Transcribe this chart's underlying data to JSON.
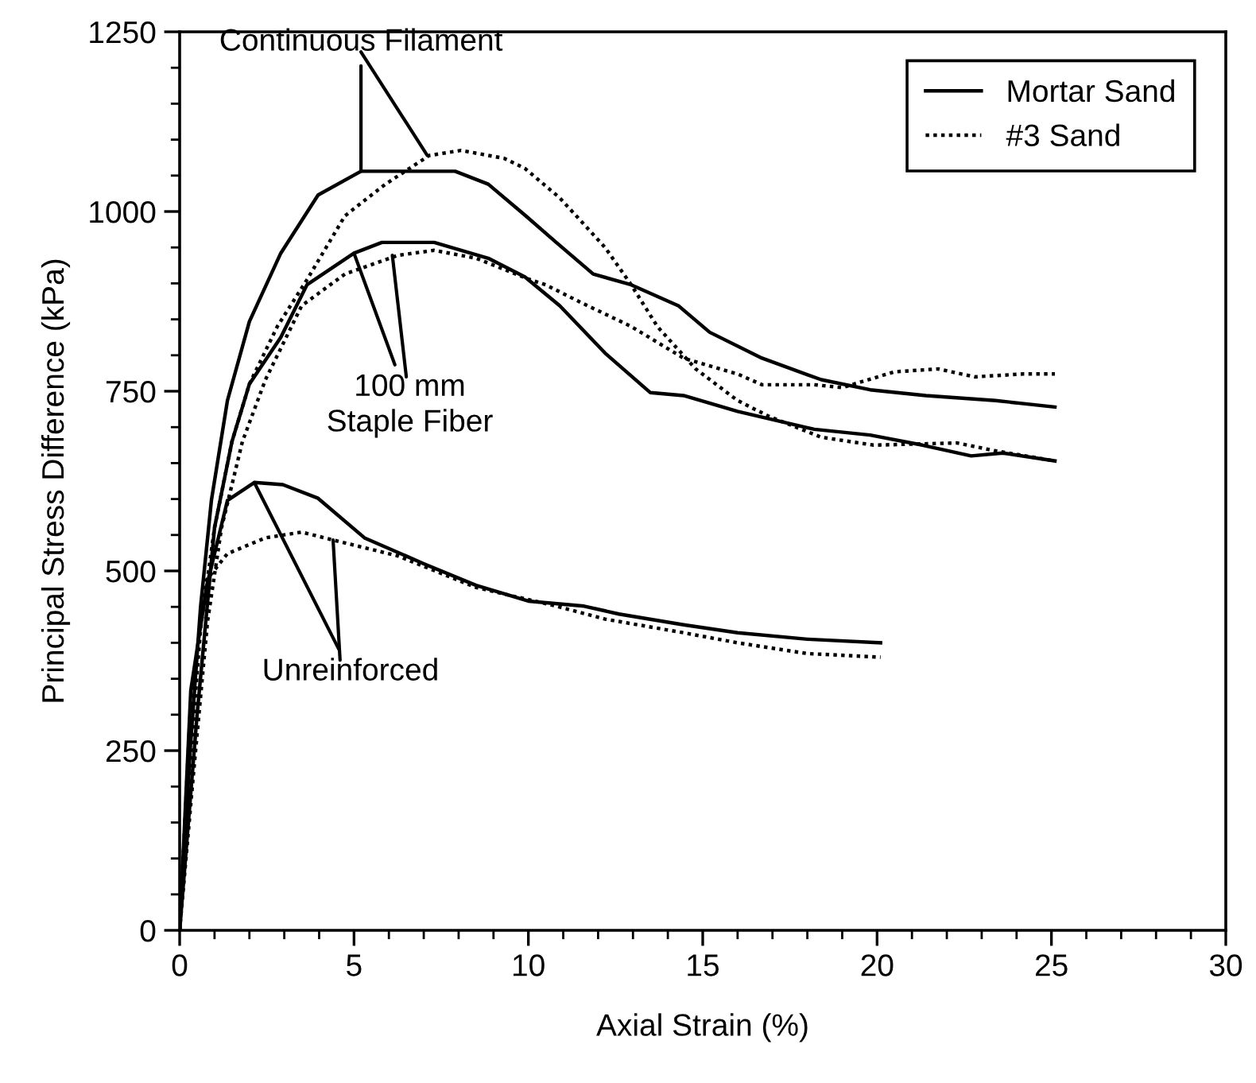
{
  "chart_data": {
    "type": "line",
    "xlabel": "Axial Strain (%)",
    "ylabel": "Principal Stress Difference (kPa)",
    "xlim": [
      0,
      30
    ],
    "xticks": [
      0,
      5,
      10,
      15,
      20,
      25,
      30
    ],
    "ylim": [
      0,
      1250
    ],
    "yticks": [
      0,
      250,
      500,
      750,
      1000,
      1250
    ],
    "grid": false,
    "legend": "top right",
    "marker": "none",
    "series": [
      {
        "name": "Mortar Sand",
        "color": "#000000",
        "line_style": "solid",
        "x": [
          0,
          0.3,
          0.6,
          0.91,
          1.37,
          2.0,
          2.9,
          3.97,
          5.2,
          7.9,
          8.85,
          9.9,
          10.8,
          11.86,
          12.95,
          14.3,
          15.2,
          16.7,
          18.4,
          19.8,
          21.4,
          23.4,
          25.1
        ],
        "values": [
          0,
          250,
          450,
          598,
          737,
          847,
          942,
          1023,
          1056,
          1056,
          1038,
          995,
          957,
          913,
          898,
          869,
          832,
          796,
          766,
          752,
          744,
          737,
          728
        ]
      },
      {
        "name": "#3 Sand",
        "color": "#000000",
        "line_style": "dotted",
        "x": [
          0,
          0.3,
          0.6,
          1.0,
          1.5,
          2.0,
          2.8,
          3.65,
          4.74,
          5.9,
          7.16,
          8.07,
          9.3,
          9.9,
          10.9,
          12.2,
          12.95,
          13.7,
          14.8,
          16.0,
          16.9,
          18.4,
          19.9,
          22.3,
          23.4,
          25.1
        ],
        "values": [
          0,
          230,
          420,
          560,
          680,
          760,
          840,
          905,
          994,
          1038,
          1078,
          1085,
          1074,
          1060,
          1019,
          950,
          898,
          840,
          781,
          737,
          715,
          686,
          675,
          678,
          667,
          653
        ]
      },
      {
        "color": "#000000",
        "line_style": "solid",
        "x": [
          0,
          0.5,
          1.0,
          1.5,
          2.0,
          2.9,
          3.65,
          5.0,
          5.8,
          7.3,
          8.85,
          9.9,
          10.9,
          12.2,
          13.5,
          14.45,
          16.0,
          18.2,
          19.8,
          21.3,
          22.7,
          23.6,
          25.1
        ],
        "values": [
          0,
          300,
          560,
          680,
          760,
          825,
          898,
          942,
          957,
          957,
          935,
          909,
          869,
          803,
          748,
          744,
          722,
          697,
          689,
          675,
          660,
          664,
          653
        ]
      },
      {
        "color": "#000000",
        "line_style": "dotted",
        "x": [
          0,
          0.4,
          0.8,
          1.2,
          1.8,
          2.46,
          3.5,
          4.74,
          6.25,
          7.3,
          8.5,
          10.0,
          10.5,
          11.4,
          12.95,
          14.45,
          16.0,
          16.7,
          18.2,
          19.0,
          20.5,
          21.75,
          22.8,
          24.2,
          25.1
        ],
        "values": [
          0,
          220,
          430,
          560,
          680,
          766,
          869,
          913,
          939,
          946,
          935,
          906,
          898,
          876,
          840,
          796,
          774,
          759,
          759,
          755,
          777,
          781,
          770,
          774,
          774
        ]
      },
      {
        "color": "#000000",
        "line_style": "solid",
        "x": [
          0,
          0.32,
          0.78,
          1.37,
          2.14,
          2.96,
          3.97,
          5.3,
          7.0,
          8.5,
          10.0,
          11.6,
          12.6,
          14.45,
          16.0,
          18.0,
          20.1
        ],
        "values": [
          0,
          334,
          480,
          598,
          623,
          620,
          601,
          546,
          510,
          480,
          458,
          451,
          440,
          425,
          414,
          405,
          400
        ]
      },
      {
        "color": "#000000",
        "line_style": "dotted",
        "x": [
          0,
          0.32,
          0.78,
          1.37,
          2.46,
          3.5,
          4.4,
          6.25,
          8.5,
          10.8,
          12.2,
          14.45,
          16.0,
          18.0,
          20.1
        ],
        "values": [
          0,
          320,
          488,
          524,
          546,
          554,
          543,
          521,
          477,
          451,
          433,
          414,
          400,
          385,
          380
        ]
      }
    ],
    "annotations": [
      {
        "text": "Continuous Filament",
        "x": 5.2,
        "y": 1056
      },
      {
        "text": "100 mm\nStaple Fiber",
        "x": 5.0,
        "y": 942
      },
      {
        "text": "Unreinforced",
        "x": 2.14,
        "y": 623
      }
    ]
  }
}
